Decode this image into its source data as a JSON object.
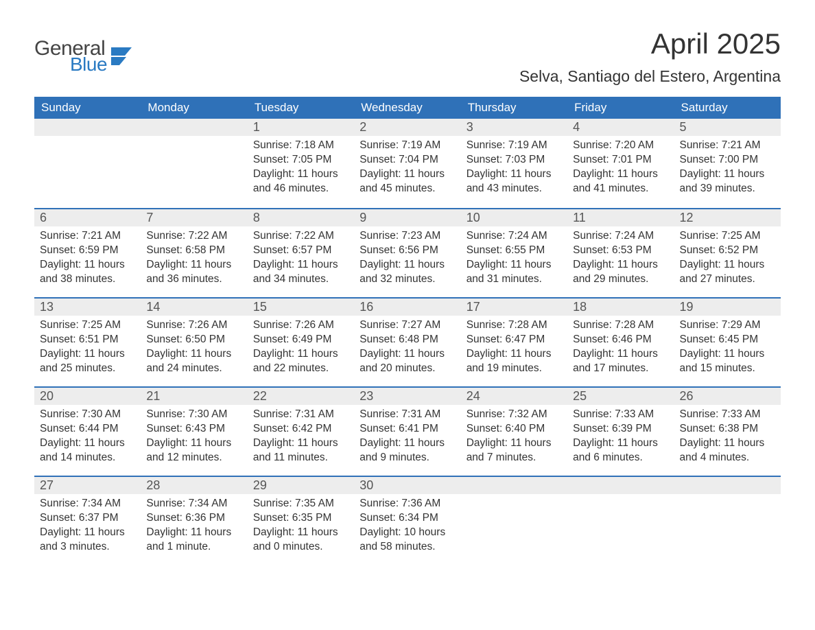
{
  "logo": {
    "main": "General",
    "accent": "Blue"
  },
  "title": "April 2025",
  "subtitle": "Selva, Santiago del Estero, Argentina",
  "colors": {
    "header_bg": "#2f71b8",
    "header_text": "#ffffff",
    "daynum_bg": "#ededed",
    "cell_border": "#2f71b8",
    "logo_accent": "#2a7ac2",
    "body_text": "#333333",
    "page_bg": "#ffffff"
  },
  "weekdays": [
    "Sunday",
    "Monday",
    "Tuesday",
    "Wednesday",
    "Thursday",
    "Friday",
    "Saturday"
  ],
  "grid": [
    [
      null,
      null,
      {
        "n": "1",
        "sr": "Sunrise: 7:18 AM",
        "ss": "Sunset: 7:05 PM",
        "d1": "Daylight: 11 hours",
        "d2": "and 46 minutes."
      },
      {
        "n": "2",
        "sr": "Sunrise: 7:19 AM",
        "ss": "Sunset: 7:04 PM",
        "d1": "Daylight: 11 hours",
        "d2": "and 45 minutes."
      },
      {
        "n": "3",
        "sr": "Sunrise: 7:19 AM",
        "ss": "Sunset: 7:03 PM",
        "d1": "Daylight: 11 hours",
        "d2": "and 43 minutes."
      },
      {
        "n": "4",
        "sr": "Sunrise: 7:20 AM",
        "ss": "Sunset: 7:01 PM",
        "d1": "Daylight: 11 hours",
        "d2": "and 41 minutes."
      },
      {
        "n": "5",
        "sr": "Sunrise: 7:21 AM",
        "ss": "Sunset: 7:00 PM",
        "d1": "Daylight: 11 hours",
        "d2": "and 39 minutes."
      }
    ],
    [
      {
        "n": "6",
        "sr": "Sunrise: 7:21 AM",
        "ss": "Sunset: 6:59 PM",
        "d1": "Daylight: 11 hours",
        "d2": "and 38 minutes."
      },
      {
        "n": "7",
        "sr": "Sunrise: 7:22 AM",
        "ss": "Sunset: 6:58 PM",
        "d1": "Daylight: 11 hours",
        "d2": "and 36 minutes."
      },
      {
        "n": "8",
        "sr": "Sunrise: 7:22 AM",
        "ss": "Sunset: 6:57 PM",
        "d1": "Daylight: 11 hours",
        "d2": "and 34 minutes."
      },
      {
        "n": "9",
        "sr": "Sunrise: 7:23 AM",
        "ss": "Sunset: 6:56 PM",
        "d1": "Daylight: 11 hours",
        "d2": "and 32 minutes."
      },
      {
        "n": "10",
        "sr": "Sunrise: 7:24 AM",
        "ss": "Sunset: 6:55 PM",
        "d1": "Daylight: 11 hours",
        "d2": "and 31 minutes."
      },
      {
        "n": "11",
        "sr": "Sunrise: 7:24 AM",
        "ss": "Sunset: 6:53 PM",
        "d1": "Daylight: 11 hours",
        "d2": "and 29 minutes."
      },
      {
        "n": "12",
        "sr": "Sunrise: 7:25 AM",
        "ss": "Sunset: 6:52 PM",
        "d1": "Daylight: 11 hours",
        "d2": "and 27 minutes."
      }
    ],
    [
      {
        "n": "13",
        "sr": "Sunrise: 7:25 AM",
        "ss": "Sunset: 6:51 PM",
        "d1": "Daylight: 11 hours",
        "d2": "and 25 minutes."
      },
      {
        "n": "14",
        "sr": "Sunrise: 7:26 AM",
        "ss": "Sunset: 6:50 PM",
        "d1": "Daylight: 11 hours",
        "d2": "and 24 minutes."
      },
      {
        "n": "15",
        "sr": "Sunrise: 7:26 AM",
        "ss": "Sunset: 6:49 PM",
        "d1": "Daylight: 11 hours",
        "d2": "and 22 minutes."
      },
      {
        "n": "16",
        "sr": "Sunrise: 7:27 AM",
        "ss": "Sunset: 6:48 PM",
        "d1": "Daylight: 11 hours",
        "d2": "and 20 minutes."
      },
      {
        "n": "17",
        "sr": "Sunrise: 7:28 AM",
        "ss": "Sunset: 6:47 PM",
        "d1": "Daylight: 11 hours",
        "d2": "and 19 minutes."
      },
      {
        "n": "18",
        "sr": "Sunrise: 7:28 AM",
        "ss": "Sunset: 6:46 PM",
        "d1": "Daylight: 11 hours",
        "d2": "and 17 minutes."
      },
      {
        "n": "19",
        "sr": "Sunrise: 7:29 AM",
        "ss": "Sunset: 6:45 PM",
        "d1": "Daylight: 11 hours",
        "d2": "and 15 minutes."
      }
    ],
    [
      {
        "n": "20",
        "sr": "Sunrise: 7:30 AM",
        "ss": "Sunset: 6:44 PM",
        "d1": "Daylight: 11 hours",
        "d2": "and 14 minutes."
      },
      {
        "n": "21",
        "sr": "Sunrise: 7:30 AM",
        "ss": "Sunset: 6:43 PM",
        "d1": "Daylight: 11 hours",
        "d2": "and 12 minutes."
      },
      {
        "n": "22",
        "sr": "Sunrise: 7:31 AM",
        "ss": "Sunset: 6:42 PM",
        "d1": "Daylight: 11 hours",
        "d2": "and 11 minutes."
      },
      {
        "n": "23",
        "sr": "Sunrise: 7:31 AM",
        "ss": "Sunset: 6:41 PM",
        "d1": "Daylight: 11 hours",
        "d2": "and 9 minutes."
      },
      {
        "n": "24",
        "sr": "Sunrise: 7:32 AM",
        "ss": "Sunset: 6:40 PM",
        "d1": "Daylight: 11 hours",
        "d2": "and 7 minutes."
      },
      {
        "n": "25",
        "sr": "Sunrise: 7:33 AM",
        "ss": "Sunset: 6:39 PM",
        "d1": "Daylight: 11 hours",
        "d2": "and 6 minutes."
      },
      {
        "n": "26",
        "sr": "Sunrise: 7:33 AM",
        "ss": "Sunset: 6:38 PM",
        "d1": "Daylight: 11 hours",
        "d2": "and 4 minutes."
      }
    ],
    [
      {
        "n": "27",
        "sr": "Sunrise: 7:34 AM",
        "ss": "Sunset: 6:37 PM",
        "d1": "Daylight: 11 hours",
        "d2": "and 3 minutes."
      },
      {
        "n": "28",
        "sr": "Sunrise: 7:34 AM",
        "ss": "Sunset: 6:36 PM",
        "d1": "Daylight: 11 hours",
        "d2": "and 1 minute."
      },
      {
        "n": "29",
        "sr": "Sunrise: 7:35 AM",
        "ss": "Sunset: 6:35 PM",
        "d1": "Daylight: 11 hours",
        "d2": "and 0 minutes."
      },
      {
        "n": "30",
        "sr": "Sunrise: 7:36 AM",
        "ss": "Sunset: 6:34 PM",
        "d1": "Daylight: 10 hours",
        "d2": "and 58 minutes."
      },
      null,
      null,
      null
    ]
  ]
}
